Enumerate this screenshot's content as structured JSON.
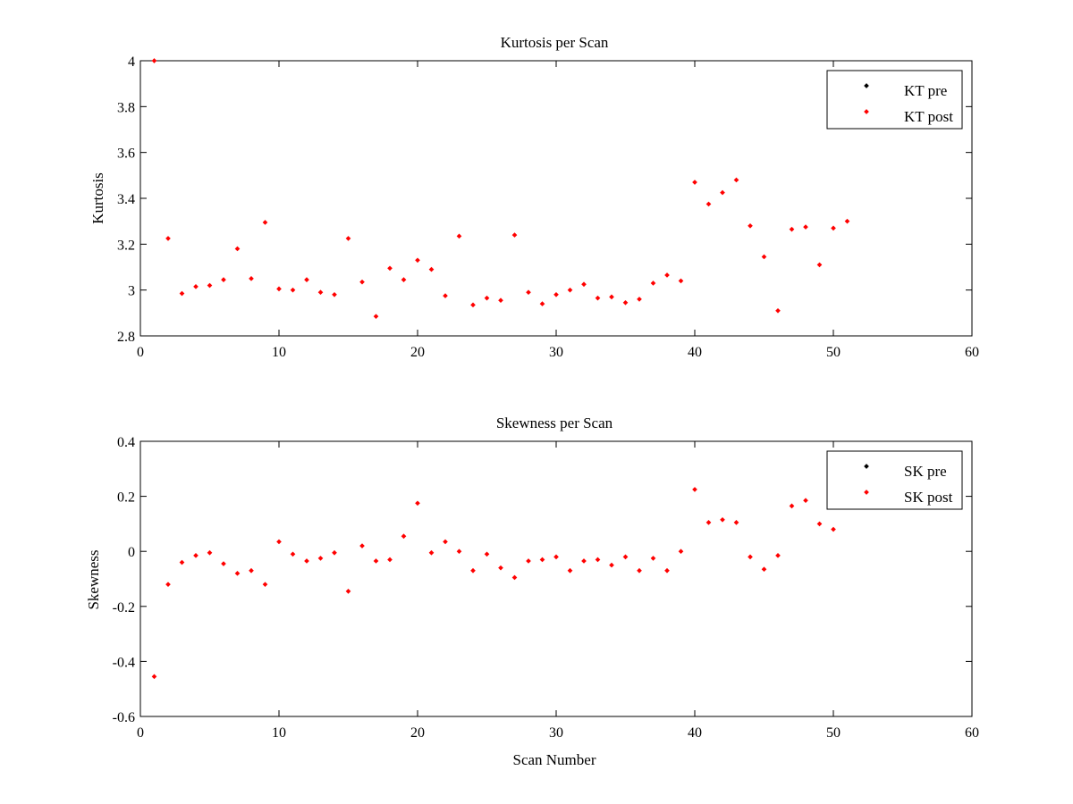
{
  "chart_data": [
    {
      "type": "scatter",
      "title": "Kurtosis per Scan",
      "xlabel": "",
      "ylabel": "Kurtosis",
      "xlim": [
        0,
        60
      ],
      "ylim": [
        2.8,
        4
      ],
      "xticks": [
        "0",
        "10",
        "20",
        "30",
        "40",
        "50",
        "60"
      ],
      "yticks": [
        "2.8",
        "3",
        "3.2",
        "3.4",
        "3.6",
        "3.8",
        "4"
      ],
      "grid": false,
      "legend_position": "top-right",
      "series": [
        {
          "name": "KT pre",
          "color": "#000000",
          "x": [],
          "y": []
        },
        {
          "name": "KT post",
          "color": "#ff0000",
          "x": [
            1,
            2,
            3,
            4,
            5,
            6,
            7,
            8,
            9,
            10,
            11,
            12,
            13,
            14,
            15,
            16,
            17,
            18,
            19,
            20,
            21,
            22,
            23,
            24,
            25,
            26,
            27,
            28,
            29,
            30,
            31,
            32,
            33,
            34,
            35,
            36,
            37,
            38,
            39,
            40,
            41,
            42,
            43,
            44,
            45,
            46,
            47,
            48,
            49,
            50,
            51
          ],
          "y": [
            4.0,
            3.225,
            2.985,
            3.015,
            3.02,
            3.045,
            3.18,
            3.05,
            3.295,
            3.005,
            3.0,
            3.045,
            2.99,
            2.98,
            3.225,
            3.035,
            2.885,
            3.095,
            3.045,
            3.13,
            3.09,
            2.975,
            3.235,
            2.935,
            2.965,
            2.955,
            3.24,
            2.99,
            2.94,
            2.98,
            3.0,
            3.025,
            2.965,
            2.97,
            2.945,
            2.96,
            3.03,
            3.065,
            3.04,
            3.47,
            3.375,
            3.425,
            3.48,
            3.28,
            3.145,
            2.91,
            3.265,
            3.275,
            3.11,
            3.27,
            3.3
          ]
        }
      ]
    },
    {
      "type": "scatter",
      "title": "Skewness per Scan",
      "xlabel": "Scan Number",
      "ylabel": "Skewness",
      "xlim": [
        0,
        60
      ],
      "ylim": [
        -0.6,
        0.4
      ],
      "xticks": [
        "0",
        "10",
        "20",
        "30",
        "40",
        "50",
        "60"
      ],
      "yticks": [
        "-0.6",
        "-0.4",
        "-0.2",
        "0",
        "0.2",
        "0.4"
      ],
      "grid": false,
      "legend_position": "top-right",
      "series": [
        {
          "name": "SK pre",
          "color": "#000000",
          "x": [],
          "y": []
        },
        {
          "name": "SK post",
          "color": "#ff0000",
          "x": [
            1,
            2,
            3,
            4,
            5,
            6,
            7,
            8,
            9,
            10,
            11,
            12,
            13,
            14,
            15,
            16,
            17,
            18,
            19,
            20,
            21,
            22,
            23,
            24,
            25,
            26,
            27,
            28,
            29,
            30,
            31,
            32,
            33,
            34,
            35,
            36,
            37,
            38,
            39,
            40,
            41,
            42,
            43,
            44,
            45,
            46,
            47,
            48,
            49,
            50
          ],
          "y": [
            -0.455,
            -0.12,
            -0.04,
            -0.015,
            -0.005,
            -0.045,
            -0.08,
            -0.07,
            -0.12,
            0.035,
            -0.01,
            -0.035,
            -0.025,
            -0.005,
            -0.145,
            0.02,
            -0.035,
            -0.03,
            0.055,
            0.175,
            -0.005,
            0.035,
            0.0,
            -0.07,
            -0.01,
            -0.06,
            -0.095,
            -0.035,
            -0.03,
            -0.02,
            -0.07,
            -0.035,
            -0.03,
            -0.05,
            -0.02,
            -0.07,
            -0.025,
            -0.07,
            0.0,
            0.225,
            0.105,
            0.115,
            0.105,
            -0.02,
            -0.065,
            -0.015,
            0.165,
            0.185,
            0.1,
            0.08
          ]
        }
      ]
    }
  ]
}
